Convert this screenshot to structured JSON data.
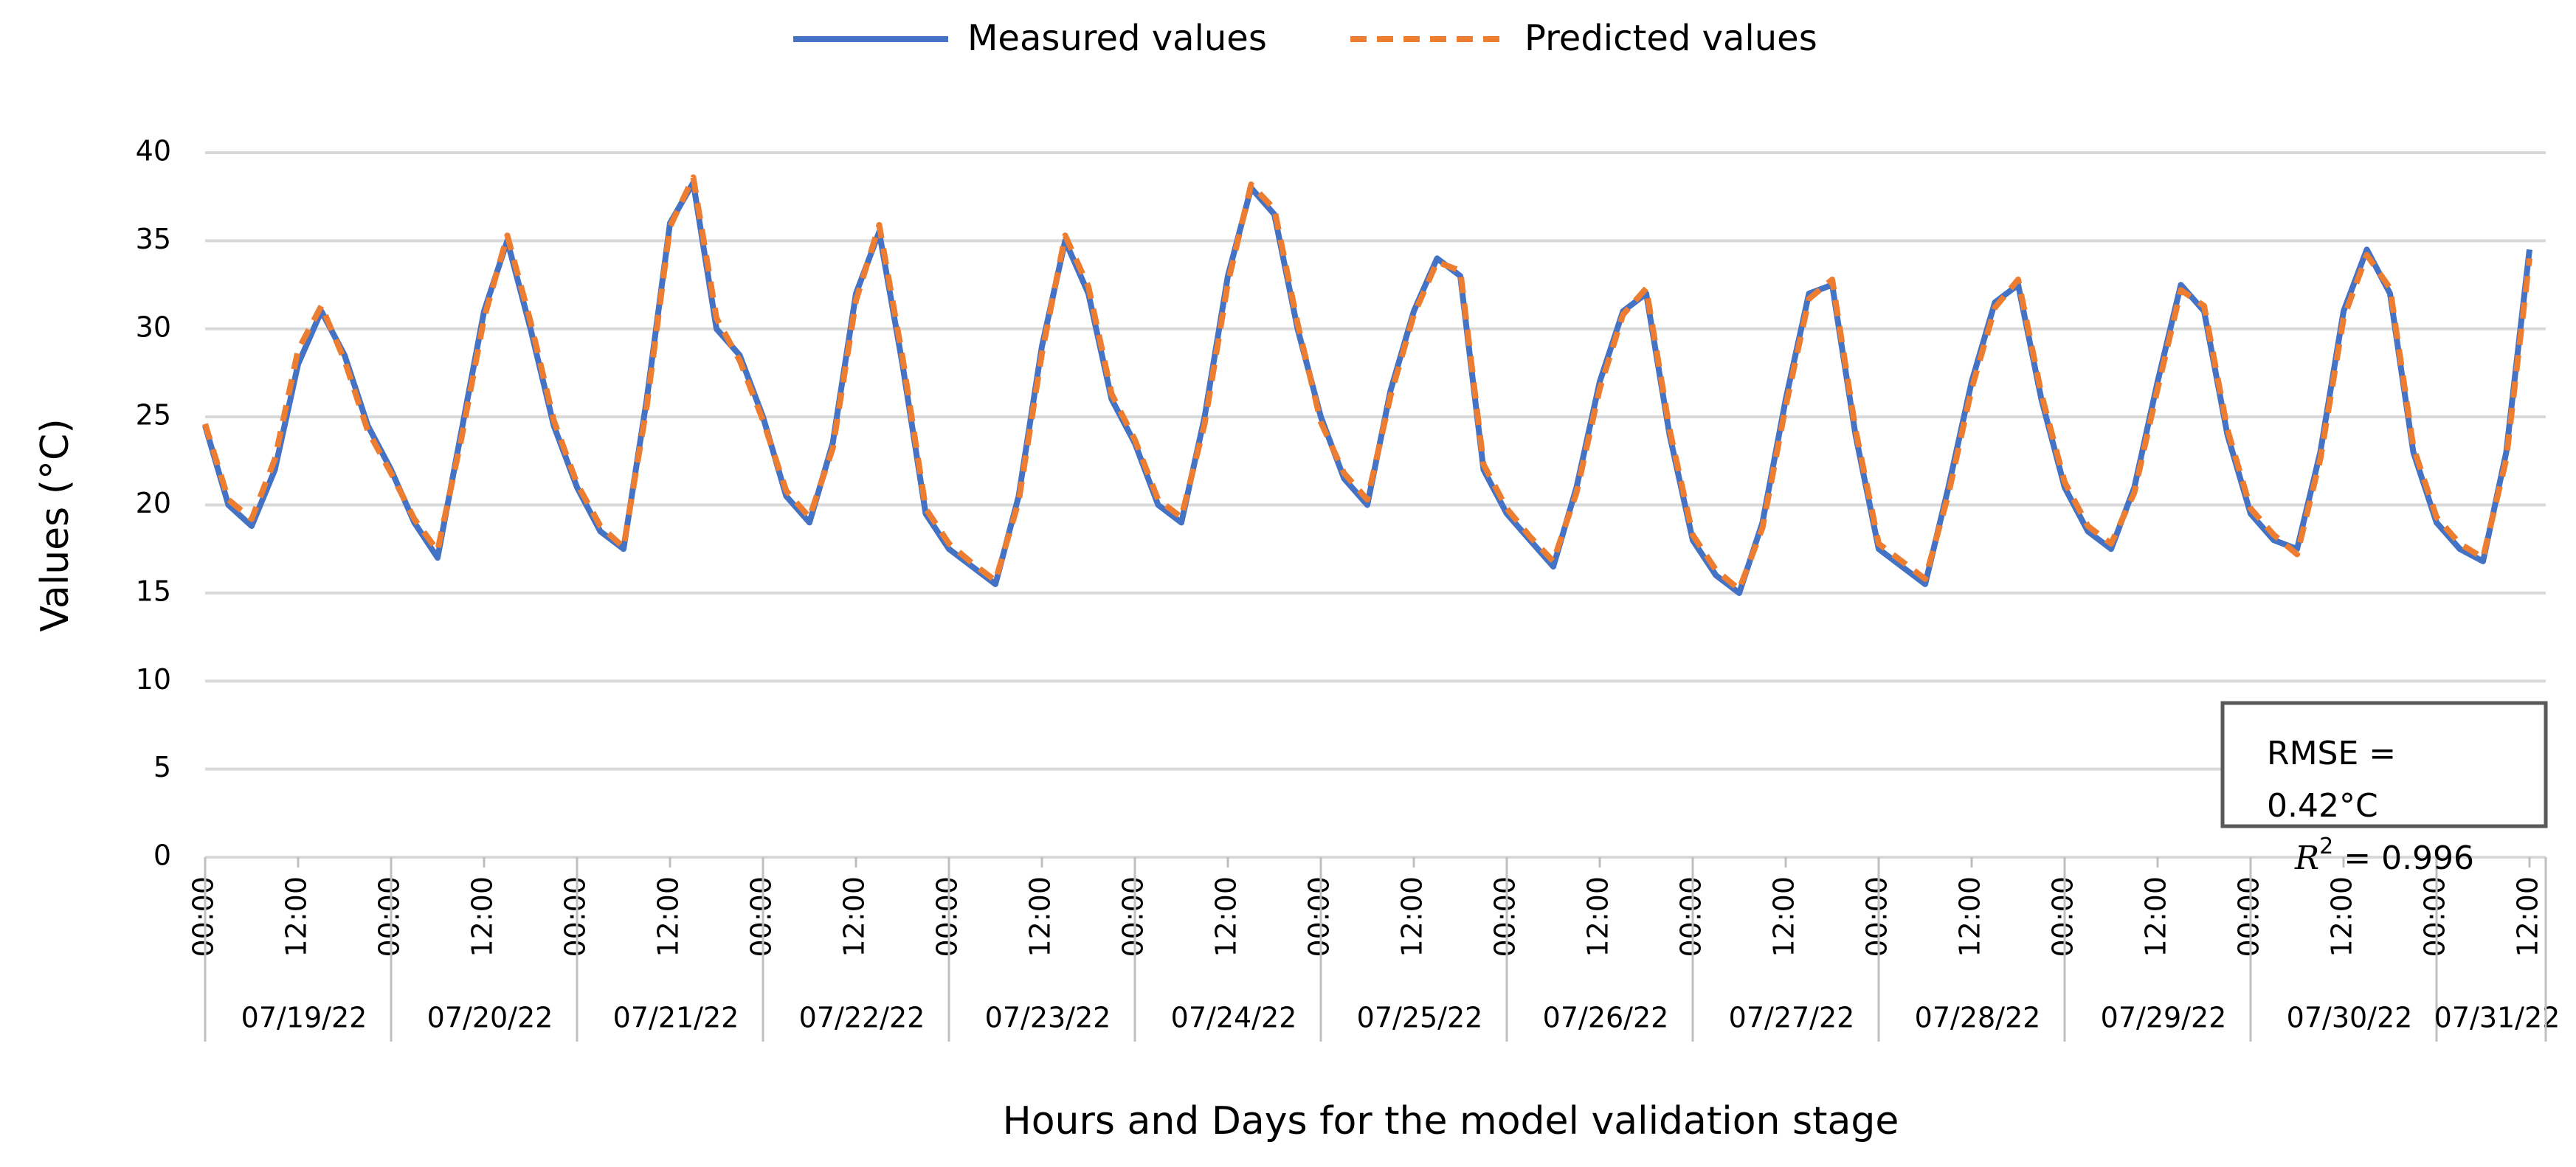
{
  "chart_data": {
    "type": "line",
    "y_axis_label": "Values (°C)",
    "x_axis_label": "Hours and Days for the model validation stage",
    "categories": [
      "00:00",
      null,
      null,
      null,
      "12:00",
      null,
      null,
      null,
      "00:00",
      null,
      null,
      null,
      "12:00",
      null,
      null,
      null,
      "00:00",
      null,
      null,
      null,
      "12:00",
      null,
      null,
      null,
      "00:00",
      null,
      null,
      null,
      "12:00",
      null,
      null,
      null,
      "00:00",
      null,
      null,
      null,
      "12:00",
      null,
      null,
      null,
      "00:00",
      null,
      null,
      null,
      "12:00",
      null,
      null,
      null,
      "00:00",
      null,
      null,
      null,
      "12:00",
      null,
      null,
      null,
      "00:00",
      null,
      null,
      null,
      "12:00",
      null,
      null,
      null,
      "00:00",
      null,
      null,
      null,
      "12:00",
      null,
      null,
      null,
      "00:00",
      null,
      null,
      null,
      "12:00",
      null,
      null,
      null,
      "00:00",
      null,
      null,
      null,
      "12:00",
      null,
      null,
      null,
      "00:00",
      null,
      null,
      null,
      "12:00",
      null,
      null,
      null,
      "00:00",
      null,
      null,
      null,
      "12:00"
    ],
    "days": [
      "07/19/22",
      "07/20/22",
      "07/21/22",
      "07/22/22",
      "07/23/22",
      "07/24/22",
      "07/25/22",
      "07/26/22",
      "07/27/22",
      "07/28/22",
      "07/29/22",
      "07/30/22",
      "07/31/22"
    ],
    "series": [
      {
        "name": "Measured values",
        "color": "#4472c4",
        "dashed": false,
        "values": [
          24.5,
          20,
          18.8,
          22,
          28,
          31,
          28.5,
          24.5,
          22,
          19,
          17,
          24,
          31,
          35,
          30,
          24.5,
          21,
          18.5,
          17.5,
          26,
          36,
          38.3,
          30,
          28.5,
          25,
          20.5,
          19,
          23.5,
          32,
          35.5,
          28,
          19.5,
          17.5,
          16.5,
          15.5,
          20.5,
          29,
          35,
          32,
          26,
          23.5,
          20,
          19,
          25,
          33,
          38,
          36.5,
          30,
          25,
          21.5,
          20,
          26.5,
          31,
          34,
          33,
          22,
          19.5,
          18,
          16.5,
          21,
          27,
          31,
          32,
          24,
          18,
          16,
          15,
          19,
          26,
          32,
          32.5,
          24,
          17.5,
          16.5,
          15.5,
          21,
          27,
          31.5,
          32.5,
          26,
          21,
          18.5,
          17.5,
          21,
          27,
          32.5,
          31,
          24,
          19.5,
          18,
          17.5,
          23,
          31,
          34.5,
          32,
          23,
          19,
          17.5,
          16.8,
          23,
          34.5
        ]
      },
      {
        "name": "Predicted values",
        "color": "#ed7d31",
        "dashed": true,
        "values": [
          24.6,
          20.3,
          19.2,
          22.6,
          28.8,
          31.3,
          28.2,
          24.2,
          21.8,
          19.2,
          17.4,
          23.6,
          30.6,
          35.3,
          30.4,
          24.8,
          21.2,
          18.8,
          17.6,
          25.6,
          35.8,
          38.6,
          30.6,
          28.2,
          24.8,
          20.8,
          19.3,
          23.2,
          31.6,
          35.9,
          28.4,
          19.8,
          17.8,
          16.7,
          15.7,
          20.2,
          28.6,
          35.3,
          32.4,
          26.3,
          23.7,
          20.3,
          19.3,
          24.6,
          32.6,
          38.2,
          36.8,
          30.3,
          24.7,
          21.8,
          20.3,
          26.2,
          30.8,
          33.8,
          33.3,
          22.3,
          19.8,
          18.2,
          16.8,
          20.7,
          26.6,
          30.8,
          32.3,
          24.3,
          18.3,
          16.3,
          15.2,
          18.7,
          25.6,
          31.7,
          32.8,
          24.3,
          17.8,
          16.8,
          15.8,
          20.6,
          26.6,
          31.2,
          32.8,
          26.3,
          21.3,
          18.8,
          17.8,
          20.7,
          26.6,
          32.2,
          31.3,
          24.3,
          19.8,
          18.3,
          17.2,
          22.6,
          30.6,
          34.2,
          32.3,
          23.3,
          19.3,
          17.8,
          17,
          22.6,
          34
        ]
      }
    ],
    "ylim": [
      0,
      40
    ],
    "yticks": [
      0,
      5,
      10,
      15,
      20,
      25,
      30,
      35,
      40
    ],
    "grid": true,
    "legend": "top",
    "annotation": {
      "lines": [
        "RMSE =",
        "0.42°C"
      ],
      "r2_symbol": "R",
      "r2_exponent": "2",
      "r2_text": " = 0.996"
    }
  }
}
